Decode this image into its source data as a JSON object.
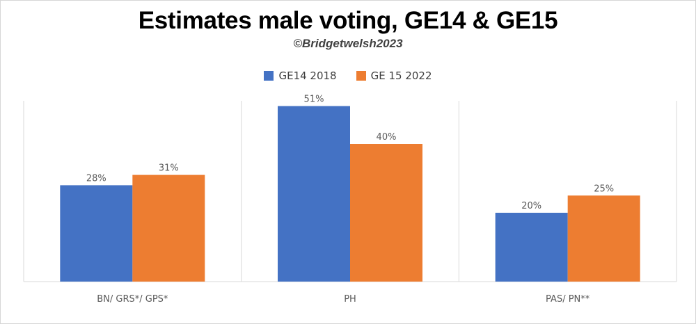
{
  "header": {
    "title": "Estimates male voting, GE14 & GE15",
    "subtitle": "©Bridgetwelsh2023"
  },
  "colors": {
    "series_1": "#4472C4",
    "series_2": "#ED7D31",
    "axis": "#d9d9d9",
    "label_text": "#595959"
  },
  "chart_data": {
    "type": "bar",
    "categories": [
      "BN/ GRS*/ GPS*",
      "PH",
      "PAS/ PN**"
    ],
    "series": [
      {
        "name": "GE14 2018",
        "values": [
          28,
          51,
          20
        ],
        "labels": [
          "28%",
          "51%",
          "20%"
        ]
      },
      {
        "name": "GE 15 2022",
        "values": [
          31,
          40,
          25
        ],
        "labels": [
          "31%",
          "40%",
          "25%"
        ]
      }
    ],
    "unit": "%",
    "ylim": [
      0,
      60
    ],
    "grid": false,
    "legend_position": "top-center"
  }
}
